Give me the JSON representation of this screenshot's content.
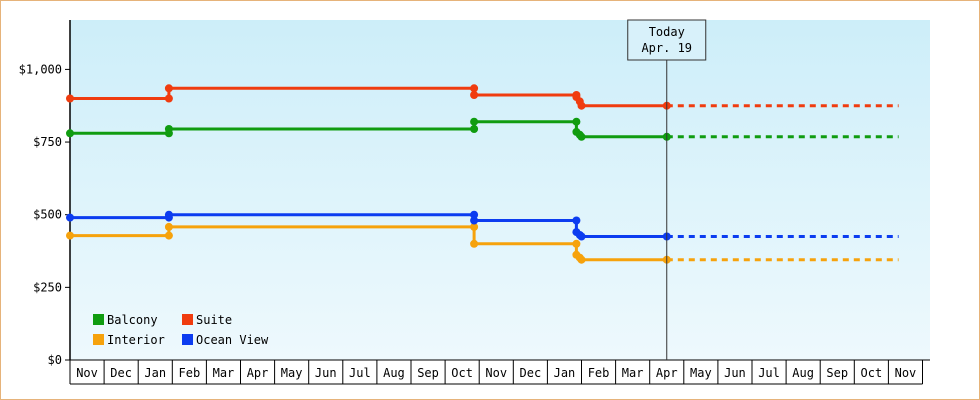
{
  "chart_data": {
    "type": "line",
    "step": true,
    "x_unit": "month",
    "x_ticks": [
      "Nov",
      "Dec",
      "Jan",
      "Feb",
      "Mar",
      "Apr",
      "May",
      "Jun",
      "Jul",
      "Aug",
      "Sep",
      "Oct",
      "Nov",
      "Dec",
      "Jan",
      "Feb",
      "Mar",
      "Apr",
      "May",
      "Jun",
      "Jul",
      "Aug",
      "Sep",
      "Oct",
      "Nov"
    ],
    "y_ticks": [
      {
        "value": 0,
        "label": "$0"
      },
      {
        "value": 250,
        "label": "$250"
      },
      {
        "value": 500,
        "label": "$500"
      },
      {
        "value": 750,
        "label": "$750"
      },
      {
        "value": 1000,
        "label": "$1,000"
      }
    ],
    "ylim": [
      0,
      1170
    ],
    "xlim": [
      0,
      24.5
    ],
    "today": {
      "title": "Today",
      "date": "Apr. 19",
      "x": 17.5
    },
    "background_gradient": [
      "#cdeef9",
      "#eef9fd"
    ],
    "legend": {
      "placement": "bottom-left"
    },
    "series": [
      {
        "name": "Balcony",
        "color": "#109c10",
        "points": [
          [
            0,
            780
          ],
          [
            2.9,
            780
          ],
          [
            2.9,
            795
          ],
          [
            11.85,
            795
          ],
          [
            11.85,
            820
          ],
          [
            14.85,
            820
          ],
          [
            14.85,
            785
          ],
          [
            14.95,
            775
          ],
          [
            15.0,
            768
          ],
          [
            17.5,
            768
          ]
        ],
        "forecast": [
          [
            17.5,
            768
          ],
          [
            24.3,
            768
          ]
        ]
      },
      {
        "name": "Suite",
        "color": "#f03c0f",
        "points": [
          [
            0,
            900
          ],
          [
            2.9,
            900
          ],
          [
            2.9,
            935
          ],
          [
            11.85,
            935
          ],
          [
            11.85,
            912
          ],
          [
            14.85,
            912
          ],
          [
            14.85,
            905
          ],
          [
            14.95,
            890
          ],
          [
            15.0,
            875
          ],
          [
            17.5,
            875
          ]
        ],
        "forecast": [
          [
            17.5,
            875
          ],
          [
            24.3,
            875
          ]
        ]
      },
      {
        "name": "Interior",
        "color": "#f6a20c",
        "points": [
          [
            0,
            428
          ],
          [
            2.9,
            428
          ],
          [
            2.9,
            458
          ],
          [
            11.85,
            458
          ],
          [
            11.85,
            400
          ],
          [
            14.85,
            400
          ],
          [
            14.85,
            362
          ],
          [
            14.95,
            352
          ],
          [
            15.0,
            345
          ],
          [
            17.5,
            345
          ]
        ],
        "forecast": [
          [
            17.5,
            345
          ],
          [
            24.3,
            345
          ]
        ]
      },
      {
        "name": "Ocean View",
        "color": "#0c3cf0",
        "points": [
          [
            0,
            490
          ],
          [
            2.9,
            490
          ],
          [
            2.9,
            500
          ],
          [
            11.85,
            500
          ],
          [
            11.85,
            480
          ],
          [
            14.85,
            480
          ],
          [
            14.85,
            440
          ],
          [
            14.95,
            430
          ],
          [
            15.0,
            425
          ],
          [
            17.5,
            425
          ]
        ],
        "forecast": [
          [
            17.5,
            425
          ],
          [
            24.3,
            425
          ]
        ]
      }
    ]
  }
}
